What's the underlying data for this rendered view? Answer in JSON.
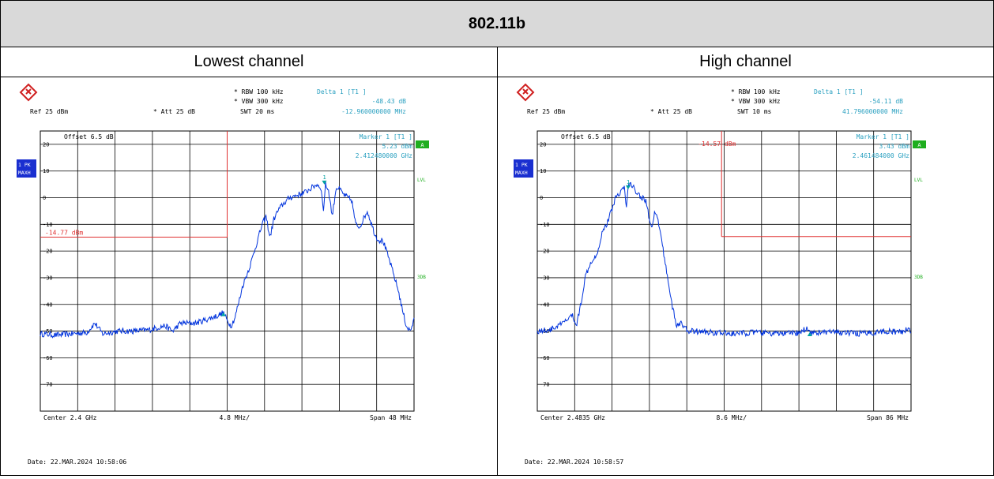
{
  "title": "802.11b",
  "colors": {
    "trace": "#0033dd",
    "grid": "#000000",
    "marker": "#00a0a0",
    "info": "#2aa0c0",
    "limit": "#e03030",
    "badge": "#1a2fd0",
    "green": "#1fae1f"
  },
  "panels": [
    {
      "heading": "Lowest channel",
      "ref": "Ref  25 dBm",
      "att": "Att  25 dB",
      "rbw": "RBW 100 kHz",
      "vbw": "VBW 300 kHz",
      "swt": "SWT 20 ms",
      "delta_label": "Delta 1 [T1 ]",
      "delta_val": "-48.43 dB",
      "delta_freq": "-12.960000000 MHz",
      "offset": "Offset  6.5 dB",
      "marker_label": "Marker 1 [T1 ]",
      "marker_val": "5.23 dBm",
      "marker_freq": "2.412480000 GHz",
      "limit_label": "-14.77 dBm",
      "center": "Center 2.4 GHz",
      "div": "4.8 MHz/",
      "span": "Span 48 MHz",
      "date": "Date: 22.MAR.2024  10:58:06",
      "badge_top": "1 PK",
      "badge_bot": "MAXH",
      "side_a": "A",
      "side_lvl": "LVL",
      "side_3db": "3DB",
      "yticks": [
        "20",
        "10",
        "0",
        "-10",
        "-20",
        "-30",
        "-40",
        "-50",
        "-60",
        "-70"
      ],
      "chart_data": {
        "type": "line",
        "xlabel": "",
        "ylabel": "",
        "ylim": [
          -80,
          25
        ],
        "xlim": [
          0,
          48
        ],
        "limit_line": {
          "value": -14.77,
          "x_start": 0,
          "x_end": 24,
          "vertical_at": 24
        },
        "markers": [
          {
            "name": "1",
            "x": 36.48,
            "y": 5.23
          },
          {
            "name": "delta",
            "x": 23.52,
            "y": -43.2
          }
        ],
        "series": [
          {
            "x": [
              0,
              2,
              4,
              6,
              7,
              8,
              10,
              12,
              14,
              16,
              17,
              18,
              20,
              21,
              22,
              23,
              23.5,
              24,
              24.5,
              25,
              26,
              27,
              27.5,
              28,
              28.5,
              29,
              29.5,
              30,
              30.5,
              31,
              32,
              33,
              34,
              35,
              35.5,
              36,
              36.4,
              36.6,
              37,
              37.5,
              38,
              38.5,
              39,
              40,
              40.5,
              41,
              42,
              43,
              43.5,
              44,
              45,
              46,
              46.5,
              47,
              47.5,
              48
            ],
            "y": [
              -51,
              -51.5,
              -51,
              -50.5,
              -47,
              -51,
              -50,
              -50,
              -49.5,
              -48,
              -50,
              -47,
              -47,
              -46,
              -45,
              -44,
              -43,
              -46,
              -48,
              -45,
              -33,
              -25,
              -20,
              -15,
              -10,
              -7,
              -15,
              -8,
              -5,
              -3,
              0,
              1,
              2,
              4,
              5,
              4,
              -5,
              5,
              3,
              -7,
              4,
              3,
              1,
              -1,
              -10,
              -11,
              -5,
              -14,
              -16,
              -16,
              -25,
              -35,
              -42,
              -48,
              -50,
              -46
            ]
          }
        ]
      }
    },
    {
      "heading": "High channel",
      "ref": "Ref  25 dBm",
      "att": "Att  25 dB",
      "rbw": "RBW 100 kHz",
      "vbw": "VBW 300 kHz",
      "swt": "SWT 10 ms",
      "delta_label": "Delta 1 [T1 ]",
      "delta_val": "-54.11 dB",
      "delta_freq": "41.796000000 MHz",
      "offset": "Offset  6.5 dB",
      "marker_label": "Marker 1 [T1 ]",
      "marker_val": "3.43 dBm",
      "marker_freq": "2.461484000 GHz",
      "limit_label": "-14.57 dBm",
      "center": "Center 2.4835 GHz",
      "div": "8.6 MHz/",
      "span": "Span 86 MHz",
      "date": "Date: 22.MAR.2024  10:58:57",
      "badge_top": "1 PK",
      "badge_bot": "MAXH",
      "side_a": "A",
      "side_lvl": "LVL",
      "side_3db": "3DB",
      "yticks": [
        "20",
        "10",
        "0",
        "-10",
        "-20",
        "-30",
        "-40",
        "-50",
        "-60",
        "-70"
      ],
      "chart_data": {
        "type": "line",
        "xlabel": "",
        "ylabel": "",
        "ylim": [
          -80,
          25
        ],
        "xlim": [
          0,
          86
        ],
        "limit_line": {
          "value": -14.57,
          "x_start": 42.4,
          "x_end": 86,
          "vertical_at": 42.4
        },
        "markers": [
          {
            "name": "1",
            "x": 20.9,
            "y": 3.43
          },
          {
            "name": "delta",
            "x": 62.7,
            "y": -50.7
          }
        ],
        "series": [
          {
            "x": [
              0,
              3,
              6,
              8,
              9,
              10,
              11,
              12,
              14,
              15,
              16,
              17,
              18,
              19,
              20,
              20.5,
              21,
              21.5,
              22,
              23,
              24,
              25,
              26,
              26.5,
              27,
              28,
              29,
              30,
              31,
              32,
              33,
              34,
              35,
              36,
              40,
              45,
              50,
              55,
              60,
              62,
              63,
              65,
              70,
              75,
              80,
              84,
              85,
              86
            ],
            "y": [
              -50,
              -49.5,
              -47,
              -44,
              -48,
              -40,
              -30,
              -25,
              -20,
              -12,
              -10,
              -5,
              0,
              2,
              4,
              -4,
              5,
              5,
              4,
              2,
              0,
              -1,
              -10,
              -12,
              -5,
              -10,
              -20,
              -30,
              -40,
              -48,
              -47,
              -49,
              -50,
              -50,
              -50.5,
              -51,
              -50.5,
              -51,
              -50.8,
              -49,
              -50.5,
              -50.5,
              -50.5,
              -51,
              -50,
              -50.5,
              -49,
              -50.5
            ]
          }
        ]
      }
    }
  ]
}
